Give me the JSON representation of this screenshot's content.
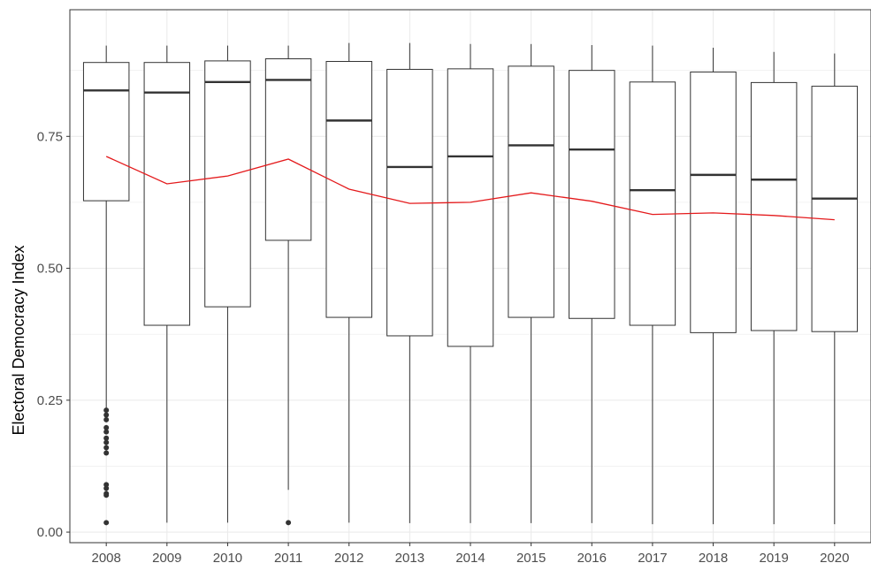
{
  "chart_data": {
    "type": "box",
    "title": "",
    "xlabel": "",
    "ylabel": "Electoral Democracy Index",
    "ylim": [
      -0.02,
      0.99
    ],
    "grid": true,
    "y_ticks": [
      0.0,
      0.25,
      0.5,
      0.75
    ],
    "y_tick_labels": [
      "0.00",
      "0.25",
      "0.50",
      "0.75"
    ],
    "categories": [
      "2008",
      "2009",
      "2010",
      "2011",
      "2012",
      "2013",
      "2014",
      "2015",
      "2016",
      "2017",
      "2018",
      "2019",
      "2020"
    ],
    "boxes": [
      {
        "whisker_low": 0.233,
        "q1": 0.628,
        "median": 0.837,
        "q3": 0.89,
        "whisker_high": 0.922,
        "outliers": [
          0.231,
          0.222,
          0.213,
          0.198,
          0.19,
          0.178,
          0.17,
          0.16,
          0.15,
          0.09,
          0.083,
          0.073,
          0.07,
          0.018
        ]
      },
      {
        "whisker_low": 0.018,
        "q1": 0.392,
        "median": 0.833,
        "q3": 0.89,
        "whisker_high": 0.922,
        "outliers": []
      },
      {
        "whisker_low": 0.018,
        "q1": 0.427,
        "median": 0.853,
        "q3": 0.893,
        "whisker_high": 0.922,
        "outliers": []
      },
      {
        "whisker_low": 0.08,
        "q1": 0.553,
        "median": 0.857,
        "q3": 0.897,
        "whisker_high": 0.922,
        "outliers": [
          0.018
        ]
      },
      {
        "whisker_low": 0.018,
        "q1": 0.407,
        "median": 0.78,
        "q3": 0.892,
        "whisker_high": 0.927,
        "outliers": []
      },
      {
        "whisker_low": 0.017,
        "q1": 0.372,
        "median": 0.692,
        "q3": 0.877,
        "whisker_high": 0.927,
        "outliers": []
      },
      {
        "whisker_low": 0.017,
        "q1": 0.352,
        "median": 0.712,
        "q3": 0.878,
        "whisker_high": 0.925,
        "outliers": []
      },
      {
        "whisker_low": 0.017,
        "q1": 0.407,
        "median": 0.733,
        "q3": 0.883,
        "whisker_high": 0.925,
        "outliers": []
      },
      {
        "whisker_low": 0.017,
        "q1": 0.405,
        "median": 0.725,
        "q3": 0.875,
        "whisker_high": 0.923,
        "outliers": []
      },
      {
        "whisker_low": 0.015,
        "q1": 0.392,
        "median": 0.648,
        "q3": 0.853,
        "whisker_high": 0.922,
        "outliers": []
      },
      {
        "whisker_low": 0.015,
        "q1": 0.378,
        "median": 0.677,
        "q3": 0.872,
        "whisker_high": 0.918,
        "outliers": []
      },
      {
        "whisker_low": 0.015,
        "q1": 0.382,
        "median": 0.668,
        "q3": 0.852,
        "whisker_high": 0.91,
        "outliers": []
      },
      {
        "whisker_low": 0.015,
        "q1": 0.38,
        "median": 0.632,
        "q3": 0.845,
        "whisker_high": 0.907,
        "outliers": []
      }
    ],
    "mean_line": {
      "color": "#e41a1c",
      "values": [
        0.712,
        0.66,
        0.675,
        0.707,
        0.65,
        0.623,
        0.625,
        0.643,
        0.627,
        0.602,
        0.605,
        0.6,
        0.592
      ]
    },
    "box_color": "#333333",
    "grid_color": "#ebebeb"
  }
}
